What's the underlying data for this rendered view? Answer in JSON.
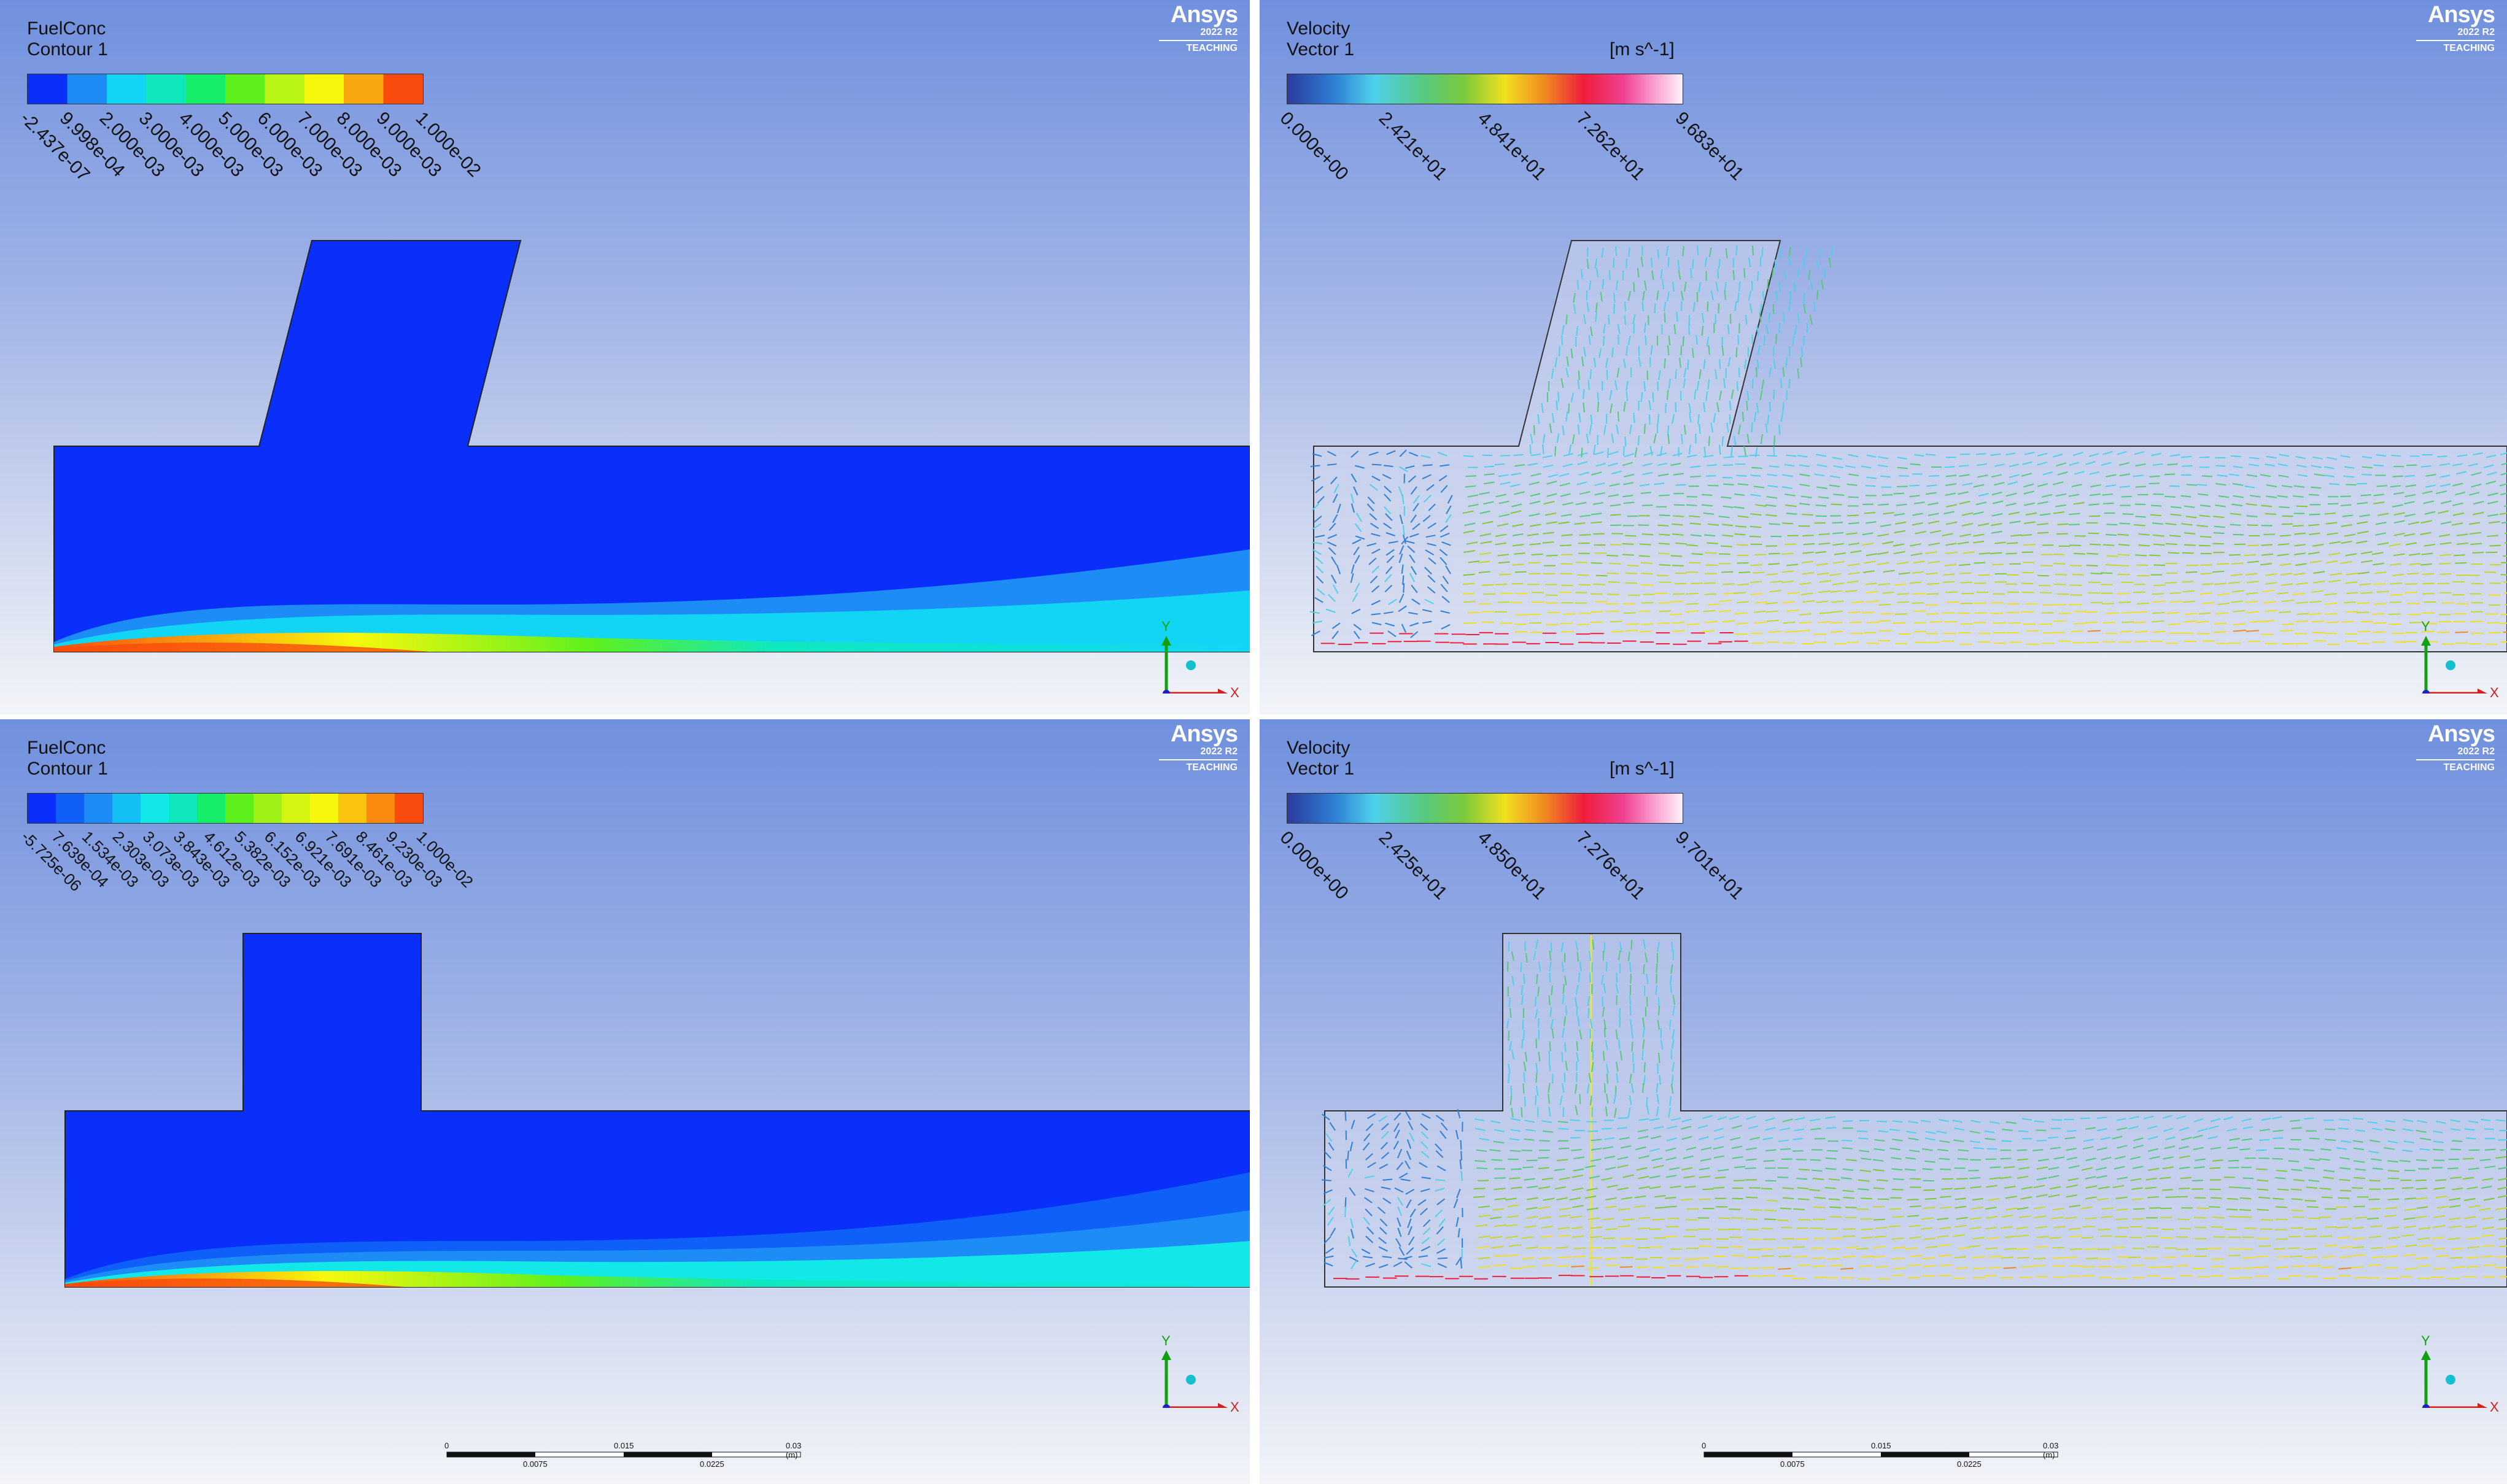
{
  "branding": {
    "name": "Ansys",
    "version": "2022 R2",
    "edition": "TEACHING"
  },
  "panels": [
    {
      "variable": "FuelConc",
      "object": "Contour 1",
      "units": "",
      "legend_type": "contour",
      "colors": [
        "#0a2ffa",
        "#1e8cf7",
        "#12d5f5",
        "#0fe8bd",
        "#16ee6a",
        "#5ef01d",
        "#b8f515",
        "#f7f70d",
        "#f9a70f",
        "#f94b0d"
      ],
      "ticks": [
        "-2.437e-07",
        "9.998e-04",
        "2.000e-03",
        "3.000e-03",
        "4.000e-03",
        "5.000e-03",
        "6.000e-03",
        "7.000e-03",
        "8.000e-03",
        "9.000e-03",
        "1.000e-02"
      ],
      "geometry": "angled-inlet"
    },
    {
      "variable": "Velocity",
      "object": "Vector 1",
      "units": "[m s^-1]",
      "legend_type": "vector",
      "ticks": [
        "0.000e+00",
        "2.421e+01",
        "4.841e+01",
        "7.262e+01",
        "9.683e+01"
      ],
      "geometry": "angled-inlet"
    },
    {
      "variable": "FuelConc",
      "object": "Contour 1",
      "units": "",
      "legend_type": "contour",
      "colors": [
        "#0a2ffa",
        "#0e60f8",
        "#1e8cf7",
        "#12c0f6",
        "#12e8e8",
        "#0fe8bd",
        "#16ee6a",
        "#5ef01d",
        "#9ff215",
        "#d6f612",
        "#f7f70d",
        "#f9c30f",
        "#f98a0f",
        "#f94b0d"
      ],
      "ticks": [
        "-5.725e-06",
        "7.639e-04",
        "1.534e-03",
        "2.303e-03",
        "3.073e-03",
        "3.843e-03",
        "4.612e-03",
        "5.382e-03",
        "6.152e-03",
        "6.921e-03",
        "7.691e-03",
        "8.461e-03",
        "9.230e-03",
        "1.000e-02"
      ],
      "geometry": "straight-inlet"
    },
    {
      "variable": "Velocity",
      "object": "Vector 1",
      "units": "[m s^-1]",
      "legend_type": "vector",
      "ticks": [
        "0.000e+00",
        "2.425e+01",
        "4.850e+01",
        "7.276e+01",
        "9.701e+01"
      ],
      "geometry": "straight-inlet"
    }
  ],
  "axes": {
    "x": "X",
    "y": "Y"
  },
  "scale_bar": {
    "top_labels": [
      "0",
      "0.015",
      "0.03 (m)"
    ],
    "bottom_labels": [
      "0.0075",
      "0.0225"
    ]
  }
}
